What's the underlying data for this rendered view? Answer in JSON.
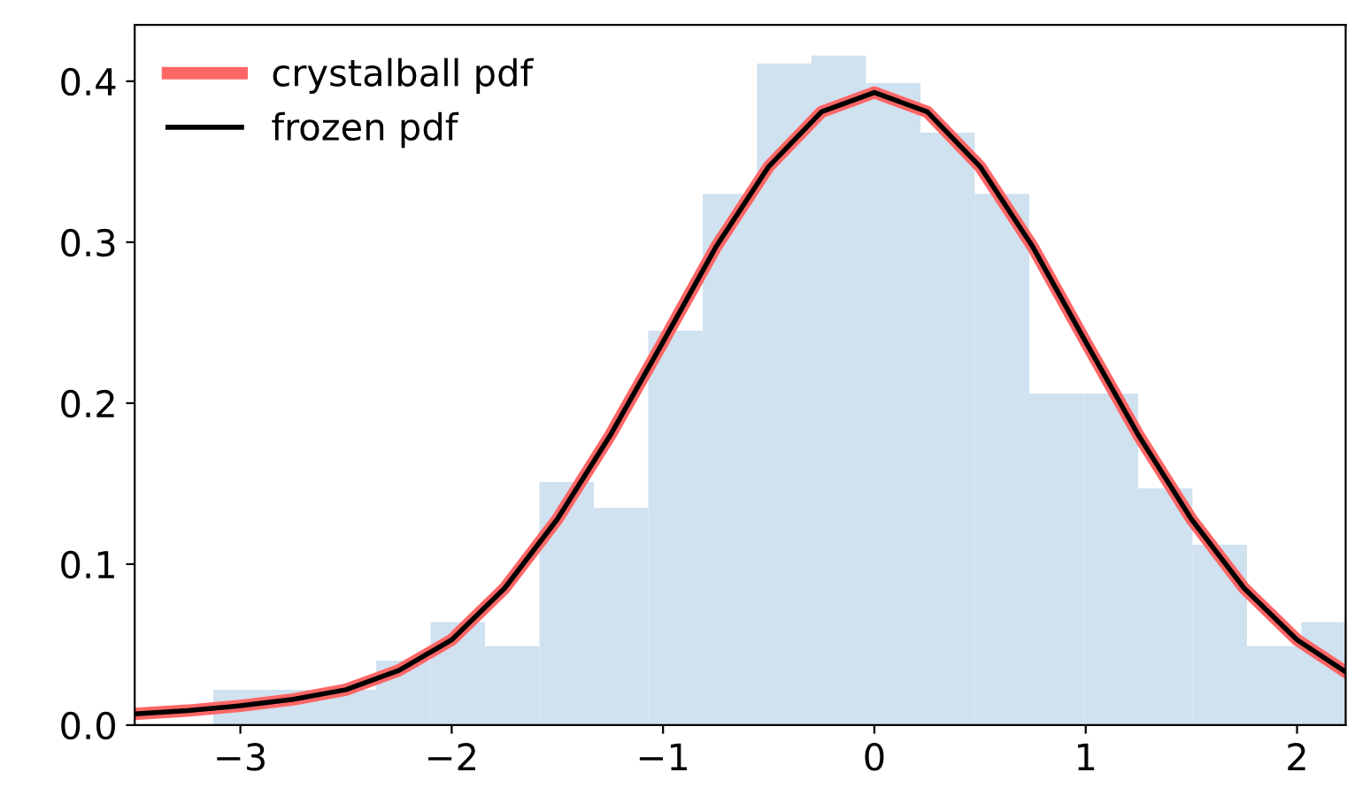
{
  "chart_data": {
    "type": "histogram",
    "bins": [
      -3.129,
      -2.872,
      -2.614,
      -2.357,
      -2.1,
      -1.842,
      -1.585,
      -1.327,
      -1.07,
      -0.812,
      -0.555,
      -0.297,
      -0.04,
      0.218,
      0.475,
      0.733,
      0.99,
      1.248,
      1.505,
      1.763,
      2.02,
      2.23
    ],
    "values": [
      0.022,
      0.022,
      0.022,
      0.04,
      0.064,
      0.049,
      0.151,
      0.135,
      0.245,
      0.33,
      0.411,
      0.416,
      0.399,
      0.368,
      0.33,
      0.206,
      0.206,
      0.147,
      0.112,
      0.049,
      0.064
    ],
    "color": "#d0e1ef",
    "series": [
      {
        "name": "crystalball pdf",
        "type": "line",
        "color": "#ff6666",
        "x": [
          -3.5,
          -3.25,
          -3.0,
          -2.75,
          -2.5,
          -2.25,
          -2.0,
          -1.75,
          -1.5,
          -1.25,
          -1.0,
          -0.75,
          -0.5,
          -0.25,
          0.0,
          0.25,
          0.5,
          0.75,
          1.0,
          1.25,
          1.5,
          1.75,
          2.0,
          2.23
        ],
        "values": [
          0.007,
          0.009,
          0.012,
          0.016,
          0.022,
          0.034,
          0.053,
          0.085,
          0.128,
          0.18,
          0.238,
          0.297,
          0.347,
          0.381,
          0.393,
          0.381,
          0.347,
          0.297,
          0.238,
          0.18,
          0.128,
          0.085,
          0.053,
          0.033
        ]
      },
      {
        "name": "frozen pdf",
        "type": "line",
        "color": "#000000",
        "x": [
          -3.5,
          -3.25,
          -3.0,
          -2.75,
          -2.5,
          -2.25,
          -2.0,
          -1.75,
          -1.5,
          -1.25,
          -1.0,
          -0.75,
          -0.5,
          -0.25,
          0.0,
          0.25,
          0.5,
          0.75,
          1.0,
          1.25,
          1.5,
          1.75,
          2.0,
          2.23
        ],
        "values": [
          0.007,
          0.009,
          0.012,
          0.016,
          0.022,
          0.034,
          0.053,
          0.085,
          0.128,
          0.18,
          0.238,
          0.297,
          0.347,
          0.381,
          0.393,
          0.381,
          0.347,
          0.297,
          0.238,
          0.18,
          0.128,
          0.085,
          0.053,
          0.033
        ]
      }
    ],
    "xlim": [
      -3.5,
      2.23
    ],
    "ylim": [
      0,
      0.435
    ],
    "xticks": [
      {
        "value": -3,
        "label": "−3"
      },
      {
        "value": -2,
        "label": "−2"
      },
      {
        "value": -1,
        "label": "−1"
      },
      0,
      1,
      2
    ],
    "yticks": [
      {
        "value": 0,
        "label": "0.0"
      },
      0.1,
      0.2,
      0.3,
      0.4
    ],
    "legend": "top left",
    "grid": false
  }
}
